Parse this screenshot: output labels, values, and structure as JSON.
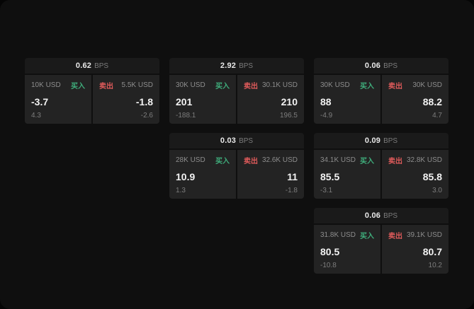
{
  "labels": {
    "buy": "买入",
    "sell": "卖出",
    "bps": "BPS"
  },
  "colors": {
    "buy_color": "#3fae7c",
    "sell_color": "#e05b5b"
  },
  "cards": [
    {
      "bps": "0.62",
      "buy": {
        "size": "10K USD",
        "price": "-3.7",
        "delta": "4.3"
      },
      "sell": {
        "size": "5.5K USD",
        "price": "-1.8",
        "delta": "-2.6"
      }
    },
    {
      "bps": "2.92",
      "buy": {
        "size": "30K USD",
        "price": "201",
        "delta": "-188.1"
      },
      "sell": {
        "size": "30.1K USD",
        "price": "210",
        "delta": "196.5"
      }
    },
    {
      "bps": "0.06",
      "buy": {
        "size": "30K USD",
        "price": "88",
        "delta": "-4.9"
      },
      "sell": {
        "size": "30K USD",
        "price": "88.2",
        "delta": "4.7"
      }
    },
    {
      "bps": "0.03",
      "buy": {
        "size": "28K USD",
        "price": "10.9",
        "delta": "1.3"
      },
      "sell": {
        "size": "32.6K USD",
        "price": "11",
        "delta": "-1.8"
      }
    },
    {
      "bps": "0.09",
      "buy": {
        "size": "34.1K USD",
        "price": "85.5",
        "delta": "-3.1"
      },
      "sell": {
        "size": "32.8K USD",
        "price": "85.8",
        "delta": "3.0"
      }
    },
    {
      "bps": "0.06",
      "buy": {
        "size": "31.8K USD",
        "price": "80.5",
        "delta": "-10.8"
      },
      "sell": {
        "size": "39.1K USD",
        "price": "80.7",
        "delta": "10.2"
      }
    }
  ]
}
